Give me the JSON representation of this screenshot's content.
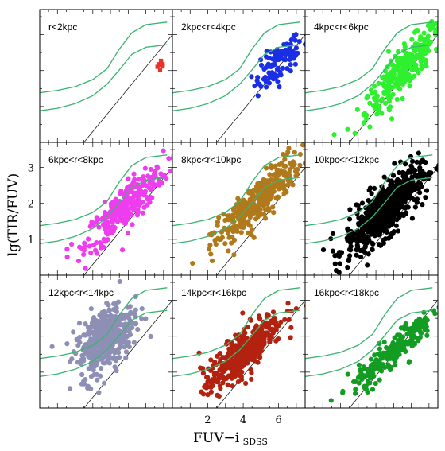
{
  "chart_data": {
    "type": "scatter",
    "xlabel": "FUV−i",
    "xlabel_subscript": "SDSS",
    "ylabel": "lg(TIR/FUV)",
    "xlim": [
      0,
      7.5
    ],
    "ylim": [
      0,
      3.7
    ],
    "x_ticks": [
      2,
      4,
      6
    ],
    "y_ticks": [
      1,
      2,
      3
    ],
    "grid": false,
    "reference_line": {
      "slope": 0.6,
      "intercept": -1.5
    },
    "model_curves": [
      {
        "color": "#3cb371",
        "points": [
          [
            0,
            1.38
          ],
          [
            1,
            1.45
          ],
          [
            2,
            1.55
          ],
          [
            3,
            1.75
          ],
          [
            3.8,
            2.05
          ],
          [
            4.5,
            2.6
          ],
          [
            5.2,
            3.05
          ],
          [
            6,
            3.28
          ],
          [
            7.2,
            3.35
          ]
        ]
      },
      {
        "color": "#3cb371",
        "points": [
          [
            0,
            0.88
          ],
          [
            1,
            0.95
          ],
          [
            2,
            1.08
          ],
          [
            3,
            1.3
          ],
          [
            3.8,
            1.62
          ],
          [
            4.5,
            2.02
          ],
          [
            5.2,
            2.45
          ],
          [
            6,
            2.65
          ],
          [
            7.2,
            2.72
          ]
        ]
      }
    ],
    "panels": [
      {
        "label": "r<2kpc",
        "color": "#e8332a",
        "marker": "square",
        "center": [
          6.9,
          2.15
        ],
        "spread": [
          0.12,
          0.08
        ],
        "n": 10,
        "tilt": 0.0,
        "cross": 0.3
      },
      {
        "label": "2kpc<r<4kpc",
        "color": "#1a2ee6",
        "marker": "circle",
        "center": [
          6.0,
          2.2
        ],
        "spread": [
          0.75,
          0.2
        ],
        "n": 100,
        "tilt": 0.45,
        "cross": 0.55
      },
      {
        "label": "4kpc<r<6kpc",
        "color": "#2ff02f",
        "marker": "circle",
        "center": [
          5.6,
          2.05
        ],
        "spread": [
          1.25,
          0.22
        ],
        "n": 320,
        "tilt": 0.55,
        "cross": 0.6
      },
      {
        "label": "6kpc<r<8kpc",
        "color": "#ee3dee",
        "marker": "circle",
        "center": [
          4.9,
          1.95
        ],
        "spread": [
          1.25,
          0.22
        ],
        "n": 300,
        "tilt": 0.45,
        "cross": 0.6
      },
      {
        "label": "8kpc<r<10kpc",
        "color": "#b07a1c",
        "marker": "circle",
        "center": [
          4.8,
          2.05
        ],
        "spread": [
          1.35,
          0.22
        ],
        "n": 360,
        "tilt": 0.5,
        "cross": 0.6
      },
      {
        "label": "10kpc<r<12kpc",
        "color": "#000000",
        "marker": "circle",
        "center": [
          4.5,
          1.8
        ],
        "spread": [
          1.2,
          0.28
        ],
        "n": 600,
        "tilt": 0.45,
        "cross": 0.65
      },
      {
        "label": "12kpc<r<14kpc",
        "color": "#8e8fb5",
        "marker": "circle",
        "center": [
          3.7,
          1.95
        ],
        "spread": [
          0.85,
          0.35
        ],
        "n": 420,
        "tilt": 0.4,
        "cross": 0.7
      },
      {
        "label": "14kpc<r<16kpc",
        "color": "#b3220f",
        "marker": "circle",
        "center": [
          4.0,
          1.55
        ],
        "spread": [
          1.15,
          0.24
        ],
        "n": 420,
        "tilt": 0.45,
        "cross": 0.6
      },
      {
        "label": "16kpc<r<18kpc",
        "color": "#139c22",
        "marker": "circle",
        "center": [
          4.9,
          1.55
        ],
        "spread": [
          1.25,
          0.18
        ],
        "n": 220,
        "tilt": 0.45,
        "cross": 0.55
      }
    ]
  }
}
